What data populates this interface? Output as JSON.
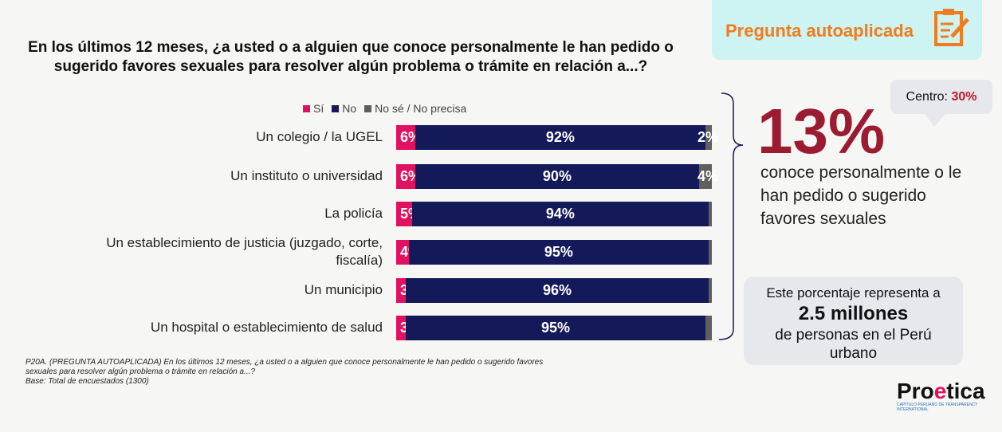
{
  "badge": {
    "label": "Pregunta autoaplicada",
    "icon": "clipboard-edit-icon"
  },
  "chart_data": {
    "type": "bar",
    "orientation": "horizontal",
    "stacked": true,
    "title": "En los últimos 12 meses, ¿a usted o a alguien que conoce personalmente le han pedido o sugerido favores sexuales para resolver algún problema o trámite en relación a...?",
    "legend_position": "top",
    "categories": [
      "Un colegio / la UGEL",
      "Un instituto o universidad",
      "La policía",
      "Un establecimiento de justicia (juzgado, corte, fiscalía)",
      "Un municipio",
      "Un hospital o establecimiento de salud"
    ],
    "series": [
      {
        "name": "Sí",
        "color": "#e0115f",
        "values": [
          6,
          6,
          5,
          4,
          3,
          3
        ],
        "labels": [
          "6%",
          "6%",
          "5%",
          "4%",
          "3%",
          "3%"
        ]
      },
      {
        "name": "No",
        "color": "#14195a",
        "values": [
          92,
          90,
          94,
          95,
          96,
          95
        ],
        "labels": [
          "92%",
          "90%",
          "94%",
          "95%",
          "96%",
          "95%"
        ]
      },
      {
        "name": "No sé / No precisa",
        "color": "#5f5f5f",
        "values": [
          2,
          4,
          1,
          1,
          1,
          2
        ],
        "labels": [
          "2%",
          "4%",
          "",
          "",
          "",
          ""
        ]
      }
    ]
  },
  "summary": {
    "value": "13%",
    "text": "conoce personalmente o le han pedido o sugerido favores sexuales",
    "centro_label": "Centro:",
    "centro_value": "30%"
  },
  "stat": {
    "line1": "Este  porcentaje representa a",
    "value": "2.5 millones",
    "line2": "de personas en el Perú urbano"
  },
  "note": {
    "line1": "P20A. (PREGUNTA AUTOAPLICADA) En los últimos 12 meses, ¿a usted o a alguien que conoce personalmente le han pedido o sugerido favores",
    "line2": "sexuales para resolver algún problema o trámite en relación a...?",
    "line3": "Base: Total de encuestados  (1300)"
  },
  "logo": {
    "name": "Proetica",
    "tagline": "CAPÍTULO PERUANO DE TRANSPARENCY INTERNATIONAL"
  }
}
